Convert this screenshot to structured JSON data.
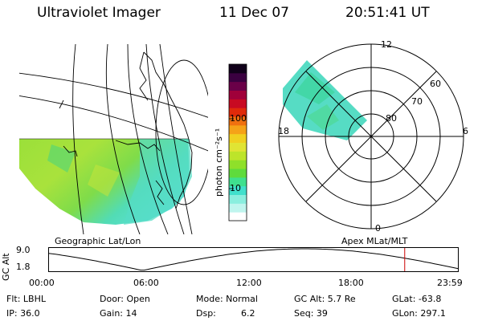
{
  "header": {
    "instrument": "Ultraviolet Imager",
    "date": "11 Dec 07",
    "time": "20:51:41 UT"
  },
  "geo_panel": {
    "caption": "Geographic Lat/Lon"
  },
  "polar_panel": {
    "caption": "Apex MLat/MLT",
    "lat_labels": [
      "80",
      "70",
      "60"
    ],
    "mlt_labels": {
      "top": "12",
      "left": "18",
      "right": "6",
      "bottom": "0"
    }
  },
  "colorbar": {
    "unit_label": "photon cm⁻²s⁻¹",
    "ticks": [
      "100",
      "10"
    ],
    "colors": [
      "#ffffff",
      "#bff5ee",
      "#8aeede",
      "#41e0cc",
      "#3fe08e",
      "#5fdb3c",
      "#8fe02a",
      "#bde42a",
      "#e0e434",
      "#f0d020",
      "#f5a218",
      "#f07010",
      "#e02a0a",
      "#c80a22",
      "#a0003a",
      "#6a0048",
      "#3a0040",
      "#10001a"
    ]
  },
  "altitude_plot": {
    "ylabel": "GC Alt",
    "ymax_label": "9.0",
    "ymin_label": "1.8",
    "x_ticks": [
      "00:00",
      "06:00",
      "12:00",
      "18:00",
      "23:59"
    ],
    "ymin": 1.8,
    "ymax": 9.0,
    "current_hour": 20.86,
    "marker_color": "#cc0000"
  },
  "status": {
    "filter": "Flt: LBHL",
    "door": "Door: Open",
    "mode": "Mode: Normal",
    "gc_alt": "GC Alt: 5.7 Re",
    "glat": "GLat: -63.8",
    "ip": "IP: 36.0",
    "gain": "Gain: 14",
    "dsp_label": "Dsp:",
    "dsp_value": "6.2",
    "seq": "Seq: 39",
    "glon": "GLon: 297.1"
  }
}
